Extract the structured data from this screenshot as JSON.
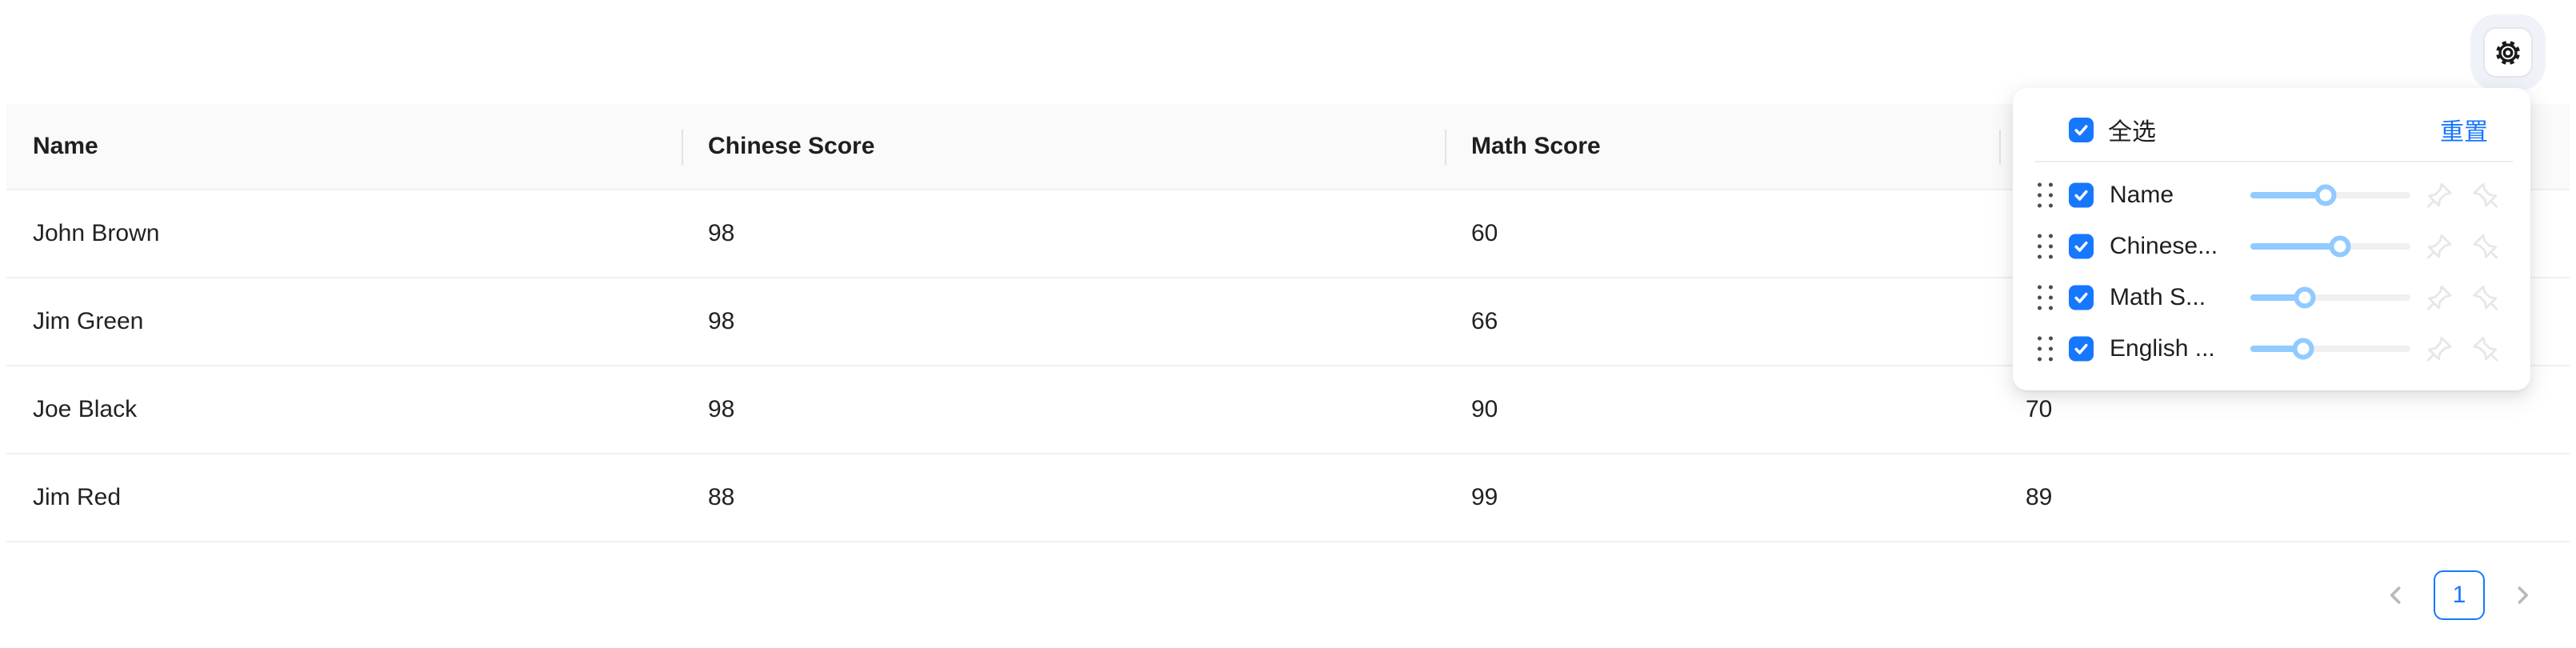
{
  "table": {
    "columns": [
      {
        "label": "Name"
      },
      {
        "label": "Chinese Score"
      },
      {
        "label": "Math Score"
      },
      {
        "label": ""
      }
    ],
    "rows": [
      {
        "cells": [
          "John Brown",
          "98",
          "60",
          ""
        ]
      },
      {
        "cells": [
          "Jim Green",
          "98",
          "66",
          ""
        ]
      },
      {
        "cells": [
          "Joe Black",
          "98",
          "90",
          "70"
        ]
      },
      {
        "cells": [
          "Jim Red",
          "88",
          "99",
          "89"
        ]
      }
    ]
  },
  "pagination": {
    "current_page": "1"
  },
  "settings_panel": {
    "select_all_label": "全选",
    "select_all_checked": true,
    "reset_label": "重置",
    "items": [
      {
        "label": "Name",
        "checked": true,
        "slider_pct": 47
      },
      {
        "label": "Chinese...",
        "checked": true,
        "slider_pct": 56
      },
      {
        "label": "Math S...",
        "checked": true,
        "slider_pct": 34
      },
      {
        "label": "English ...",
        "checked": true,
        "slider_pct": 33
      }
    ]
  },
  "colors": {
    "accent": "#1677ff",
    "slider_fill": "#91caff",
    "header_bg": "#fafafa",
    "divider": "#f0f0f0",
    "pin_gray": "#e7e7e7",
    "chevron_gray": "#b9b9b9"
  }
}
